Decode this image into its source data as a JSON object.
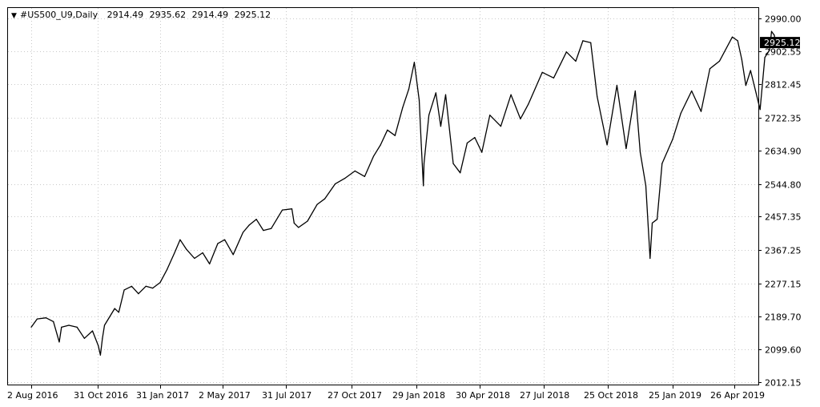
{
  "header": {
    "menu_arrow": "▼",
    "symbol": "#US500_U9,Daily",
    "open": "2914.49",
    "high": "2935.62",
    "low": "2914.49",
    "close": "2925.12"
  },
  "current_price_label": "2925.12",
  "colors": {
    "background": "#ffffff",
    "line": "#000000",
    "grid": "#c8c8c8",
    "badge": "#000000"
  },
  "chart_data": {
    "type": "line",
    "title": "",
    "xlabel": "",
    "ylabel": "",
    "grid": true,
    "ylim": [
      2012.15,
      2990.0
    ],
    "y_ticks": [
      "2990.00",
      "2902.55",
      "2812.45",
      "2722.35",
      "2634.90",
      "2544.80",
      "2457.35",
      "2367.25",
      "2277.15",
      "2189.70",
      "2099.60",
      "2012.15"
    ],
    "x_ticks": [
      "2 Aug 2016",
      "31 Oct 2016",
      "31 Jan 2017",
      "2 May 2017",
      "31 Jul 2017",
      "27 Oct 2017",
      "29 Jan 2018",
      "30 Apr 2018",
      "27 Jul 2018",
      "25 Oct 2018",
      "25 Jan 2019",
      "26 Apr 2019"
    ],
    "series": [
      {
        "values": [
          [
            "2016-08-02",
            2160
          ],
          [
            "2016-08-10",
            2182
          ],
          [
            "2016-08-22",
            2185
          ],
          [
            "2016-09-01",
            2175
          ],
          [
            "2016-09-09",
            2120
          ],
          [
            "2016-09-12",
            2160
          ],
          [
            "2016-09-22",
            2165
          ],
          [
            "2016-10-03",
            2160
          ],
          [
            "2016-10-13",
            2130
          ],
          [
            "2016-10-24",
            2150
          ],
          [
            "2016-11-01",
            2110
          ],
          [
            "2016-11-04",
            2085
          ],
          [
            "2016-11-07",
            2130
          ],
          [
            "2016-11-10",
            2165
          ],
          [
            "2016-11-25",
            2210
          ],
          [
            "2016-12-01",
            2200
          ],
          [
            "2016-12-09",
            2260
          ],
          [
            "2016-12-20",
            2270
          ],
          [
            "2016-12-30",
            2250
          ],
          [
            "2017-01-10",
            2270
          ],
          [
            "2017-01-20",
            2265
          ],
          [
            "2017-01-31",
            2280
          ],
          [
            "2017-02-10",
            2315
          ],
          [
            "2017-02-21",
            2360
          ],
          [
            "2017-03-01",
            2395
          ],
          [
            "2017-03-10",
            2370
          ],
          [
            "2017-03-22",
            2345
          ],
          [
            "2017-04-03",
            2360
          ],
          [
            "2017-04-13",
            2330
          ],
          [
            "2017-04-25",
            2385
          ],
          [
            "2017-05-05",
            2395
          ],
          [
            "2017-05-17",
            2355
          ],
          [
            "2017-05-31",
            2415
          ],
          [
            "2017-06-09",
            2435
          ],
          [
            "2017-06-19",
            2450
          ],
          [
            "2017-06-29",
            2420
          ],
          [
            "2017-07-10",
            2425
          ],
          [
            "2017-07-26",
            2475
          ],
          [
            "2017-08-08",
            2478
          ],
          [
            "2017-08-11",
            2440
          ],
          [
            "2017-08-17",
            2428
          ],
          [
            "2017-08-29",
            2445
          ],
          [
            "2017-09-11",
            2490
          ],
          [
            "2017-09-21",
            2505
          ],
          [
            "2017-10-05",
            2545
          ],
          [
            "2017-10-18",
            2560
          ],
          [
            "2017-11-01",
            2580
          ],
          [
            "2017-11-15",
            2565
          ],
          [
            "2017-11-28",
            2620
          ],
          [
            "2017-12-08",
            2650
          ],
          [
            "2017-12-18",
            2690
          ],
          [
            "2017-12-29",
            2675
          ],
          [
            "2018-01-09",
            2750
          ],
          [
            "2018-01-18",
            2800
          ],
          [
            "2018-01-26",
            2872
          ],
          [
            "2018-02-02",
            2770
          ],
          [
            "2018-02-05",
            2650
          ],
          [
            "2018-02-08",
            2540
          ],
          [
            "2018-02-09",
            2600
          ],
          [
            "2018-02-16",
            2730
          ],
          [
            "2018-02-26",
            2790
          ],
          [
            "2018-03-05",
            2700
          ],
          [
            "2018-03-12",
            2785
          ],
          [
            "2018-03-23",
            2600
          ],
          [
            "2018-04-02",
            2575
          ],
          [
            "2018-04-12",
            2655
          ],
          [
            "2018-04-23",
            2670
          ],
          [
            "2018-05-03",
            2630
          ],
          [
            "2018-05-14",
            2730
          ],
          [
            "2018-05-29",
            2700
          ],
          [
            "2018-06-12",
            2785
          ],
          [
            "2018-06-25",
            2720
          ],
          [
            "2018-07-06",
            2760
          ],
          [
            "2018-07-25",
            2845
          ],
          [
            "2018-08-10",
            2830
          ],
          [
            "2018-08-28",
            2900
          ],
          [
            "2018-09-10",
            2875
          ],
          [
            "2018-09-20",
            2930
          ],
          [
            "2018-10-01",
            2925
          ],
          [
            "2018-10-10",
            2780
          ],
          [
            "2018-10-24",
            2650
          ],
          [
            "2018-11-07",
            2810
          ],
          [
            "2018-11-20",
            2640
          ],
          [
            "2018-12-03",
            2795
          ],
          [
            "2018-12-10",
            2630
          ],
          [
            "2018-12-18",
            2540
          ],
          [
            "2018-12-24",
            2345
          ],
          [
            "2018-12-27",
            2440
          ],
          [
            "2019-01-03",
            2450
          ],
          [
            "2019-01-10",
            2600
          ],
          [
            "2019-01-25",
            2665
          ],
          [
            "2019-02-06",
            2735
          ],
          [
            "2019-02-22",
            2795
          ],
          [
            "2019-03-08",
            2740
          ],
          [
            "2019-03-21",
            2855
          ],
          [
            "2019-04-04",
            2875
          ],
          [
            "2019-04-23",
            2940
          ],
          [
            "2019-05-01",
            2930
          ],
          [
            "2019-05-07",
            2880
          ],
          [
            "2019-05-13",
            2810
          ],
          [
            "2019-05-20",
            2850
          ],
          [
            "2019-06-03",
            2745
          ],
          [
            "2019-06-10",
            2885
          ],
          [
            "2019-06-17",
            2905
          ],
          [
            "2019-06-20",
            2955
          ],
          [
            "2019-06-24",
            2945
          ],
          [
            "2019-06-26",
            2925
          ]
        ]
      }
    ]
  }
}
